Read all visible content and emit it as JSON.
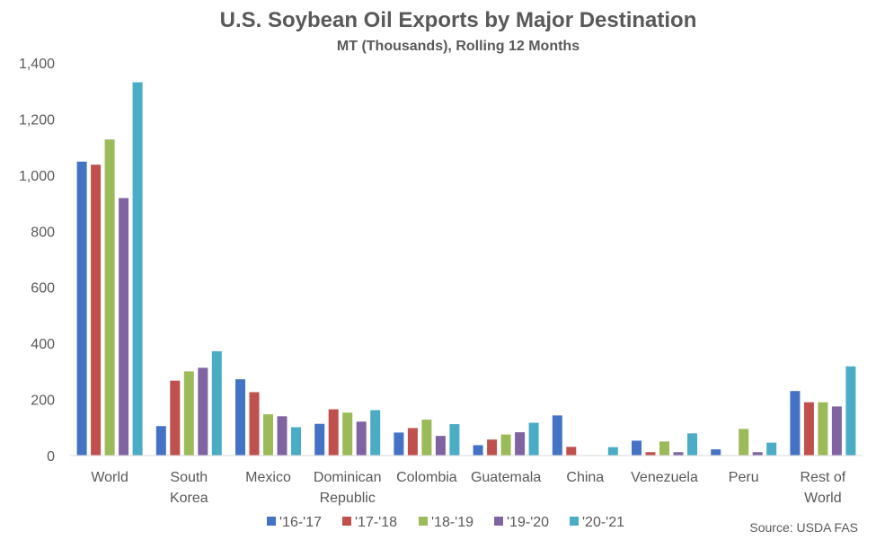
{
  "chart_data": {
    "type": "bar",
    "title": "U.S. Soybean Oil Exports by Major Destination",
    "subtitle": "MT (Thousands), Rolling 12 Months",
    "source": "Source: USDA FAS",
    "categories": [
      [
        "World"
      ],
      [
        "South",
        "Korea"
      ],
      [
        "Mexico"
      ],
      [
        "Dominican",
        "Republic"
      ],
      [
        "Colombia"
      ],
      [
        "Guatemala"
      ],
      [
        "China"
      ],
      [
        "Venezuela"
      ],
      [
        "Peru"
      ],
      [
        "Rest of",
        "World"
      ]
    ],
    "series": [
      {
        "name": "'16-'17",
        "color": "#4472c4",
        "values": [
          1048,
          105,
          272,
          113,
          82,
          37,
          143,
          53,
          22,
          230
        ]
      },
      {
        "name": "'17-'18",
        "color": "#c0504d",
        "values": [
          1037,
          267,
          226,
          165,
          98,
          57,
          31,
          12,
          0,
          190
        ]
      },
      {
        "name": "'18-'19",
        "color": "#9bbb59",
        "values": [
          1127,
          300,
          147,
          153,
          128,
          75,
          0,
          50,
          95,
          190
        ]
      },
      {
        "name": "'19-'20",
        "color": "#8064a2",
        "values": [
          918,
          313,
          140,
          121,
          70,
          83,
          0,
          12,
          12,
          175
        ]
      },
      {
        "name": "'20-'21",
        "color": "#4bacc6",
        "values": [
          1331,
          372,
          101,
          162,
          112,
          117,
          30,
          79,
          46,
          318
        ]
      }
    ],
    "ylim": [
      0,
      1400
    ],
    "yticks": [
      0,
      200,
      400,
      600,
      800,
      1000,
      1200,
      1400
    ],
    "ytick_labels": [
      "0",
      "200",
      "400",
      "600",
      "800",
      "1,000",
      "1,200",
      "1,400"
    ],
    "grid": false,
    "legend_position": "bottom"
  }
}
